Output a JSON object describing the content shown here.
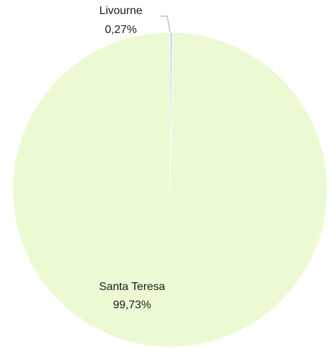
{
  "chart_data": {
    "type": "pie",
    "slices": [
      {
        "label": "Livourne",
        "value": 0.27,
        "value_label": "0,27%",
        "color": "#c6d9f1"
      },
      {
        "label": "Santa Teresa",
        "value": 99.73,
        "value_label": "99,73%",
        "color": "#ebfad2"
      }
    ],
    "slice_border_color": "#ffffff",
    "leader_line_color": "#a6a6a6",
    "legend": "none"
  }
}
